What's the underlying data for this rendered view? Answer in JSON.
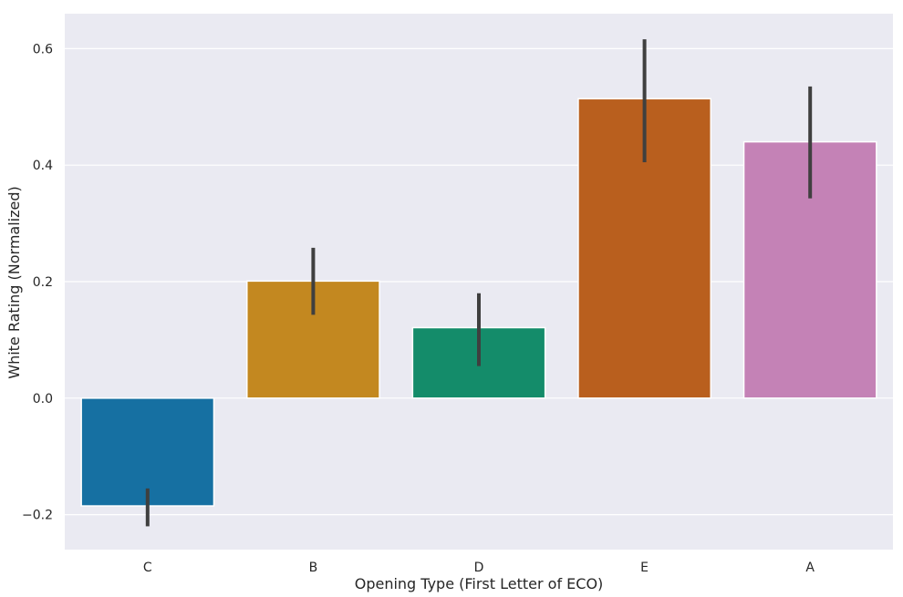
{
  "chart_data": {
    "type": "bar",
    "title": "",
    "xlabel": "Opening Type (First Letter of ECO)",
    "ylabel": "White Rating (Normalized)",
    "categories": [
      "C",
      "B",
      "D",
      "E",
      "A"
    ],
    "values": [
      -0.185,
      0.201,
      0.121,
      0.514,
      0.44
    ],
    "error_low": [
      -0.22,
      0.143,
      0.055,
      0.405,
      0.343
    ],
    "error_high": [
      -0.155,
      0.258,
      0.18,
      0.616,
      0.535
    ],
    "colors": [
      "#1670a2",
      "#c38820",
      "#148c6a",
      "#b95f1e",
      "#c482b6"
    ],
    "ylim": [
      -0.26,
      0.66
    ],
    "yticks": [
      -0.2,
      0.0,
      0.2,
      0.4,
      0.6
    ],
    "ytick_labels": [
      "−0.2",
      "0.0",
      "0.2",
      "0.4",
      "0.6"
    ],
    "grid": true,
    "background": "#eaeaf2"
  }
}
